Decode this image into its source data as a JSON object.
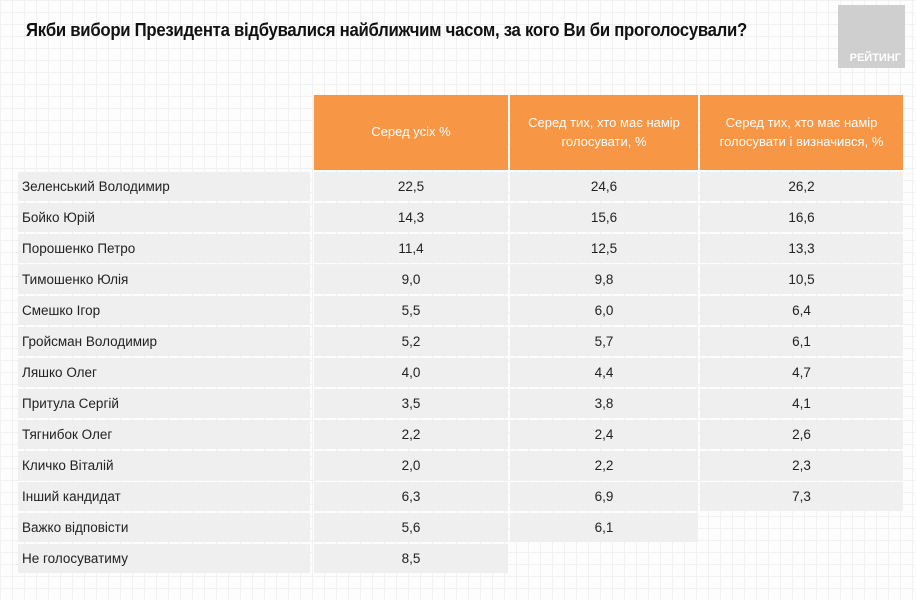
{
  "title": "Якби вибори Президента відбувалися найближчим часом, за кого Ви би проголосували?",
  "logo_text": "РЕЙТИНГ",
  "colors": {
    "header": "#f79645",
    "row": "#efefef",
    "logo": "#cfcfcf"
  },
  "chart_data": {
    "type": "table",
    "columns": [
      "Серед усіх %",
      "Серед тих, хто має намір голосувати, %",
      "Серед тих, хто має намір голосувати і визначився, %"
    ],
    "rows": [
      {
        "label": "Зеленський Володимир",
        "values": [
          "22,5",
          "24,6",
          "26,2"
        ]
      },
      {
        "label": "Бойко Юрій",
        "values": [
          "14,3",
          "15,6",
          "16,6"
        ]
      },
      {
        "label": "Порошенко Петро",
        "values": [
          "11,4",
          "12,5",
          "13,3"
        ]
      },
      {
        "label": "Тимошенко Юлія",
        "values": [
          "9,0",
          "9,8",
          "10,5"
        ]
      },
      {
        "label": "Смешко Ігор",
        "values": [
          "5,5",
          "6,0",
          "6,4"
        ]
      },
      {
        "label": "Гройсман Володимир",
        "values": [
          "5,2",
          "5,7",
          "6,1"
        ]
      },
      {
        "label": "Ляшко Олег",
        "values": [
          "4,0",
          "4,4",
          "4,7"
        ]
      },
      {
        "label": "Притула Сергій",
        "values": [
          "3,5",
          "3,8",
          "4,1"
        ]
      },
      {
        "label": "Тягнибок Олег",
        "values": [
          "2,2",
          "2,4",
          "2,6"
        ]
      },
      {
        "label": "Кличко Віталій",
        "values": [
          "2,0",
          "2,2",
          "2,3"
        ]
      },
      {
        "label": "Інший кандидат",
        "values": [
          "6,3",
          "6,9",
          "7,3"
        ]
      },
      {
        "label": "Важко відповісти",
        "values": [
          "5,6",
          "6,1"
        ]
      },
      {
        "label": "Не голосуватиму",
        "values": [
          "8,5"
        ]
      }
    ]
  }
}
